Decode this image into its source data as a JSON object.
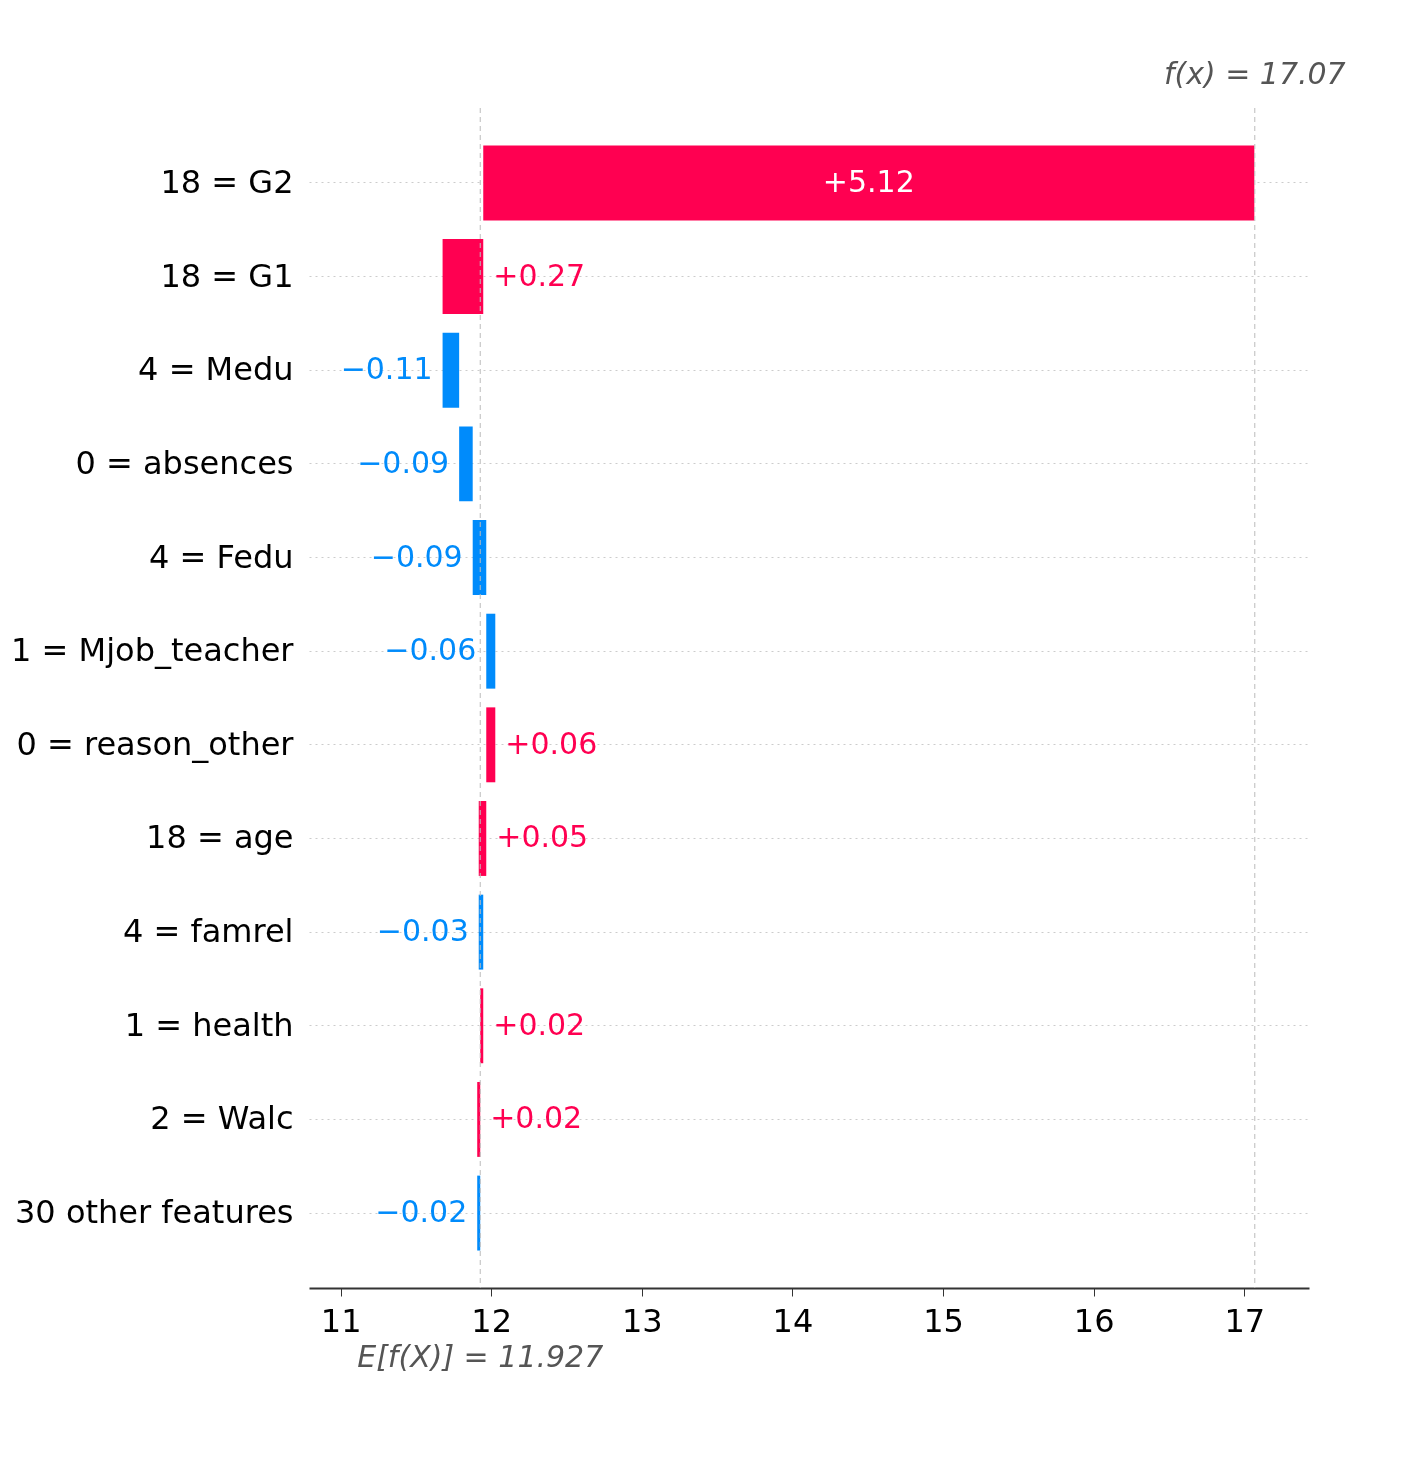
{
  "chart_data": {
    "type": "bar",
    "orientation": "horizontal",
    "categories": [
      "18 = G2",
      "18 = G1",
      "4 = Medu",
      "0 = absences",
      "4 = Fedu",
      "1 = Mjob_teacher",
      "0 = reason_other",
      "18 = age",
      "4 = famrel",
      "1 = health",
      "2 = Walc",
      "30 other features"
    ],
    "values": [
      5.12,
      0.27,
      -0.11,
      -0.09,
      -0.09,
      -0.06,
      0.06,
      0.05,
      -0.03,
      0.02,
      0.02,
      -0.02
    ],
    "base": [
      11.947,
      11.677,
      11.787,
      11.877,
      11.967,
      12.027,
      11.967,
      11.917,
      11.947,
      11.927,
      11.907,
      11.927
    ],
    "colors": [
      "#ff0051",
      "#ff0051",
      "#008bfb",
      "#008bfb",
      "#008bfb",
      "#008bfb",
      "#ff0051",
      "#ff0051",
      "#008bfb",
      "#ff0051",
      "#ff0051",
      "#008bfb"
    ],
    "value_labels": [
      "+5.12",
      "+0.27",
      "−0.11",
      "−0.09",
      "−0.09",
      "−0.06",
      "+0.06",
      "+0.05",
      "−0.03",
      "+0.02",
      "+0.02",
      "−0.02"
    ],
    "xlim": [
      10.79,
      17.43
    ],
    "xticks": [
      11,
      12,
      13,
      14,
      15,
      16,
      17
    ],
    "ref_lines": [
      {
        "axis": "x",
        "value": 17.07,
        "label": "f(x) = 17.07",
        "color": "#bbbbbb",
        "line_style": "dashed"
      },
      {
        "axis": "x",
        "value": 11.927,
        "label": "E[f(X)] = 11.927",
        "color": "#bbbbbb",
        "line_style": "dashed"
      }
    ],
    "grid": "y"
  }
}
